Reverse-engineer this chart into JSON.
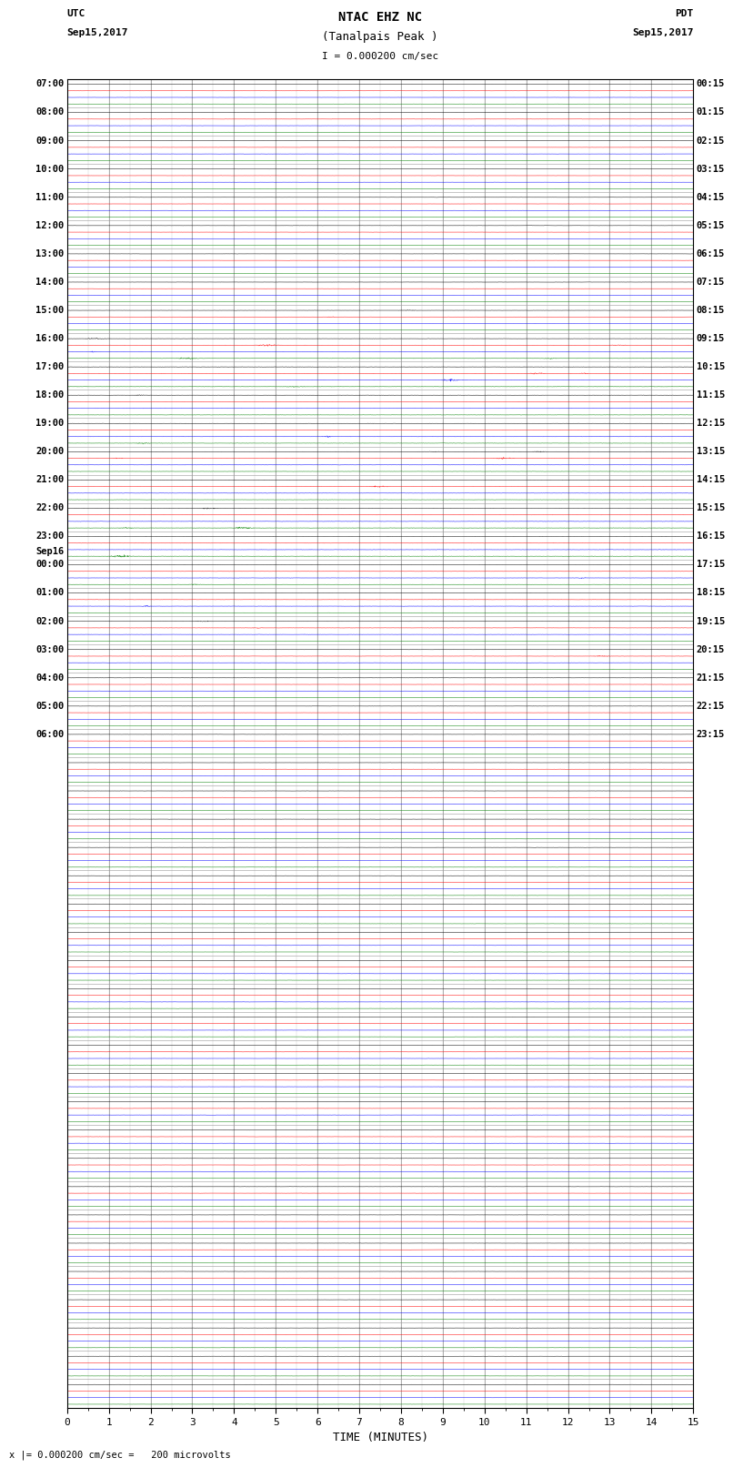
{
  "title_line1": "NTAC EHZ NC",
  "title_line2": "(Tanalpais Peak )",
  "title_line3": "I = 0.000200 cm/sec",
  "left_header_line1": "UTC",
  "left_header_line2": "Sep15,2017",
  "right_header_line1": "PDT",
  "right_header_line2": "Sep15,2017",
  "xlabel": "TIME (MINUTES)",
  "footer": "x |= 0.000200 cm/sec =   200 microvolts",
  "num_rows": 47,
  "trace_colors": [
    "black",
    "red",
    "blue",
    "green"
  ],
  "traces_per_row": 4,
  "background_color": "white",
  "grid_color": "#999999",
  "x_min": 0,
  "x_max": 15,
  "fig_width": 8.5,
  "fig_height": 16.13,
  "left_labels": [
    "07:00",
    "08:00",
    "09:00",
    "10:00",
    "11:00",
    "12:00",
    "13:00",
    "14:00",
    "15:00",
    "16:00",
    "17:00",
    "18:00",
    "19:00",
    "20:00",
    "21:00",
    "22:00",
    "23:00",
    "Sep16\n00:00",
    "01:00",
    "02:00",
    "03:00",
    "04:00",
    "05:00",
    "06:00"
  ],
  "left_label_rows": [
    0,
    1,
    2,
    3,
    4,
    5,
    6,
    7,
    8,
    9,
    10,
    11,
    12,
    13,
    14,
    15,
    16,
    17,
    18,
    19,
    20,
    21,
    22,
    23
  ],
  "right_labels": [
    "00:15",
    "01:15",
    "02:15",
    "03:15",
    "04:15",
    "05:15",
    "06:15",
    "07:15",
    "08:15",
    "09:15",
    "10:15",
    "11:15",
    "12:15",
    "13:15",
    "14:15",
    "15:15",
    "16:15",
    "17:15",
    "18:15",
    "19:15",
    "20:15",
    "21:15",
    "22:15",
    "23:15"
  ],
  "right_label_rows": [
    0,
    1,
    2,
    3,
    4,
    5,
    6,
    7,
    8,
    9,
    10,
    11,
    12,
    13,
    14,
    15,
    16,
    17,
    18,
    19,
    20,
    21,
    22,
    23
  ]
}
